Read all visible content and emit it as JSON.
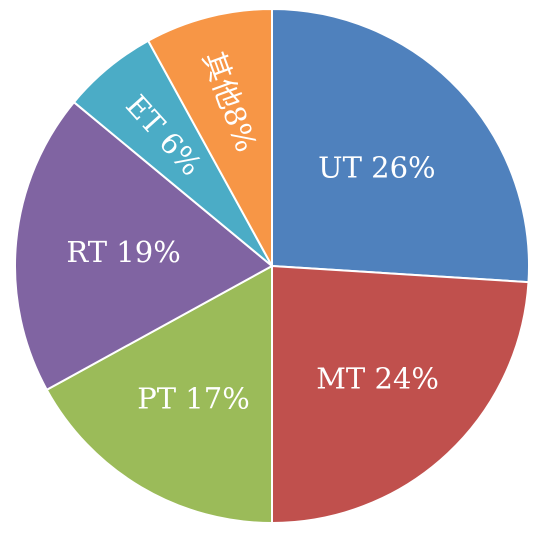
{
  "chart_data": {
    "type": "pie",
    "title": "",
    "start_angle_deg": 90,
    "direction": "clockwise",
    "legend": "none",
    "slices": [
      {
        "name": "UT",
        "value": 26,
        "label": "UT 26%",
        "color": "#4f81bd"
      },
      {
        "name": "MT",
        "value": 24,
        "label": "MT 24%",
        "color": "#c0504d"
      },
      {
        "name": "PT",
        "value": 17,
        "label": "PT 17%",
        "color": "#9bbb59"
      },
      {
        "name": "RT",
        "value": 19,
        "label": "RT 19%",
        "color": "#8064a2"
      },
      {
        "name": "ET",
        "value": 6,
        "label": "ET 6%",
        "color": "#4bacc6"
      },
      {
        "name": "其他",
        "value": 8,
        "label": "其他8%",
        "color": "#f79646"
      }
    ]
  }
}
